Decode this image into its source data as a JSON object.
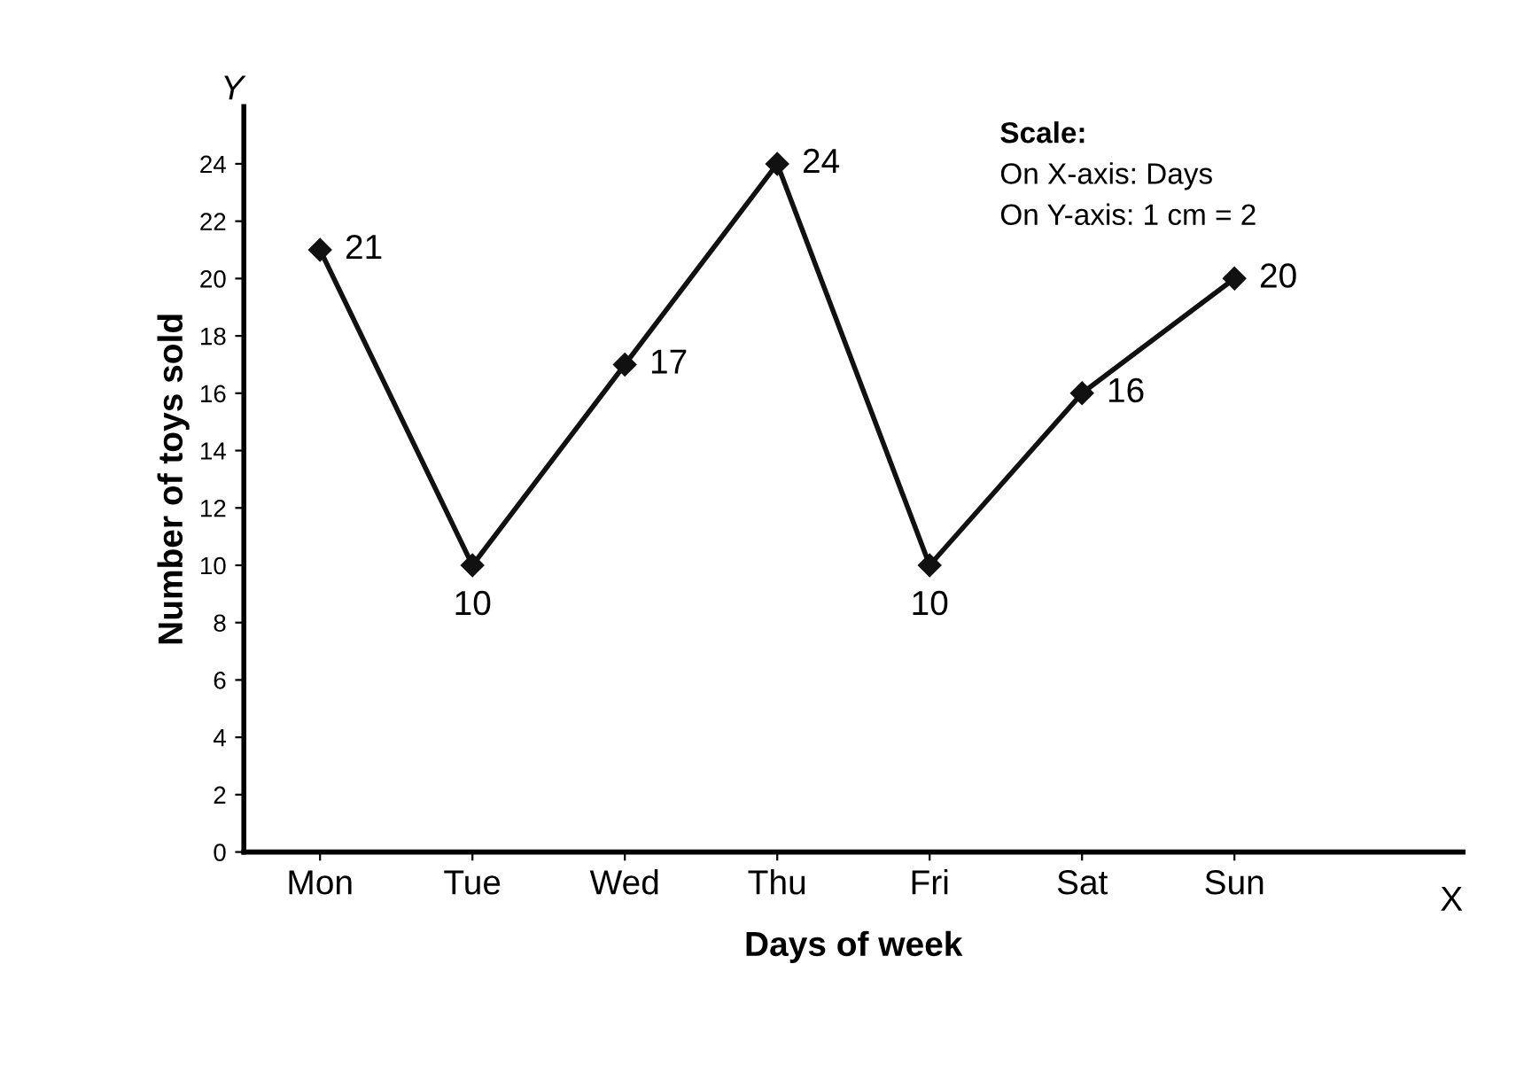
{
  "chart_data": {
    "type": "line",
    "xlabel": "Days of week",
    "ylabel": "Number of toys sold",
    "categories": [
      "Mon",
      "Tue",
      "Wed",
      "Thu",
      "Fri",
      "Sat",
      "Sun"
    ],
    "values": [
      21,
      10,
      17,
      24,
      10,
      16,
      20
    ],
    "color": "#111111",
    "marker": "diamond",
    "line_style": "solid",
    "data_labels": true,
    "grid": false,
    "legend": false,
    "ylim": [
      0,
      26
    ],
    "yticks": [
      0,
      2,
      4,
      6,
      8,
      10,
      12,
      14,
      16,
      18,
      20,
      22,
      24
    ],
    "annotations": [
      "Y",
      "X",
      "Scale:",
      "On X-axis: Days",
      "On Y-axis: 1 cm = 2"
    ]
  }
}
